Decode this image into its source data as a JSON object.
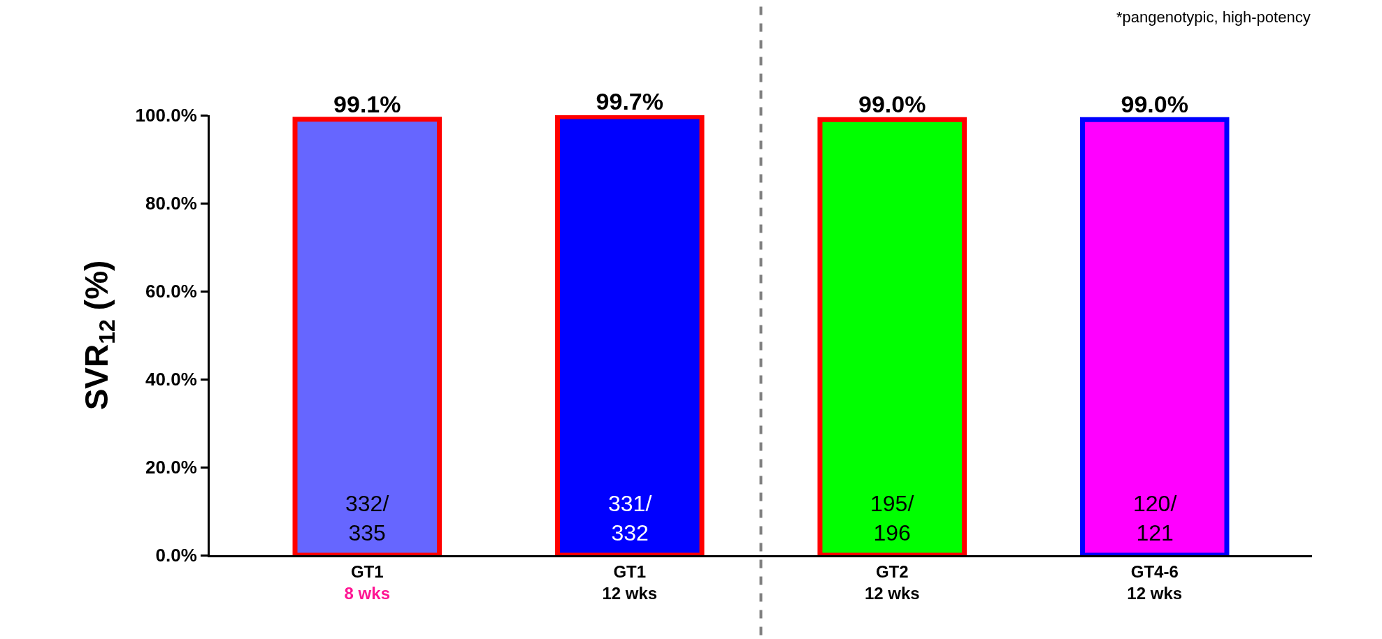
{
  "chart_data": {
    "type": "bar",
    "ylabel": "SVR$_{12}$ (%)",
    "categories": [
      "GT1\n8 wks",
      "GT1\n12 wks",
      "GT2\n12 wks",
      "GT4-6\n12 wks"
    ],
    "values": [
      99.1,
      99.7,
      99.0,
      99.0
    ],
    "colors": [
      "#6666ff",
      "#0000ff",
      "#00ff00",
      "#ff00ff"
    ],
    "value_labels": [
      "99.1%",
      "99.7%",
      "99.0%",
      "99.0%"
    ],
    "ylim": [
      0,
      100
    ],
    "yticks": [
      {
        "value": 0,
        "label": "0.0%"
      },
      {
        "value": 20,
        "label": "20.0%"
      },
      {
        "value": 40,
        "label": "40.0%"
      },
      {
        "value": 60,
        "label": "60.0%"
      },
      {
        "value": 80,
        "label": "80.0%"
      },
      {
        "value": 100,
        "label": "100.0%"
      }
    ],
    "legend": false,
    "annotations": [
      "332/\n335",
      "331/\n332",
      "195/\n196",
      "120/\n121",
      "*pangenotypic, high-potency"
    ]
  }
}
